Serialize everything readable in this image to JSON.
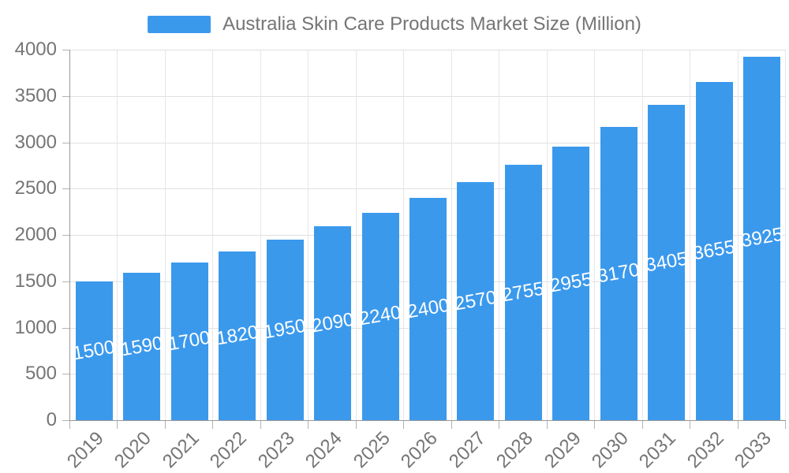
{
  "legend": {
    "label": "Australia Skin Care Products Market Size (Million)"
  },
  "chart_data": {
    "type": "bar",
    "title": "Australia Skin Care Products Market Size (Million)",
    "series_name": "Australia Skin Care Products Market Size (Million)",
    "categories": [
      "2019",
      "2020",
      "2021",
      "2022",
      "2023",
      "2024",
      "2025",
      "2026",
      "2027",
      "2028",
      "2029",
      "2030",
      "2031",
      "2032",
      "2033"
    ],
    "values": [
      1500,
      1590,
      1700,
      1820,
      1950,
      2090,
      2240,
      2400,
      2570,
      2755,
      2955,
      3170,
      3405,
      3655,
      3925
    ],
    "xlabel": "",
    "ylabel": "",
    "ylim": [
      0,
      4000
    ],
    "yticks": [
      0,
      500,
      1000,
      1500,
      2000,
      2500,
      3000,
      3500,
      4000
    ],
    "grid": true,
    "legend_position": "top",
    "x_tick_rotation_deg": 45,
    "bar_label_rotation_deg": 10,
    "bar_labels_inside": true,
    "colors": {
      "bar": "#3b99ec",
      "bar_label_text": "#ffffff",
      "axis_text": "#757575",
      "grid_line": "#e0e0e0",
      "axis_line": "#999999",
      "tick": "#b3b3b3",
      "background": "#ffffff"
    }
  }
}
